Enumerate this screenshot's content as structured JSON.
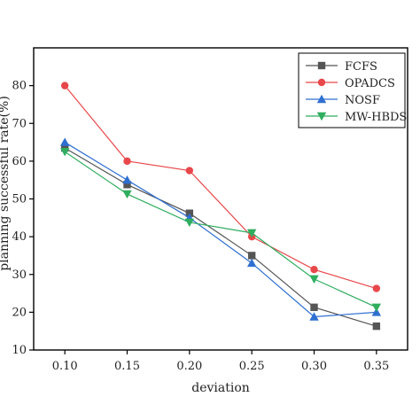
{
  "chart_data": {
    "type": "line",
    "xlabel": "deviation",
    "ylabel": "planning successful rate(%)",
    "x": [
      0.1,
      0.15,
      0.2,
      0.25,
      0.3,
      0.35
    ],
    "x_tick_labels": [
      "0.10",
      "0.15",
      "0.20",
      "0.25",
      "0.30",
      "0.35"
    ],
    "y_ticks": [
      10,
      20,
      30,
      40,
      50,
      60,
      70,
      80
    ],
    "ylim": [
      10,
      90
    ],
    "xlim": [
      0.075,
      0.375
    ],
    "grid": false,
    "legend_position": "top-right",
    "series": [
      {
        "name": "FCFS",
        "color": "#555555",
        "marker": "square",
        "values": [
          63.5,
          53.8,
          46.2,
          35.0,
          21.3,
          16.3
        ]
      },
      {
        "name": "OPADCS",
        "color": "#e8484b",
        "marker": "circle",
        "values": [
          80.0,
          60.0,
          57.5,
          40.0,
          31.3,
          26.3
        ]
      },
      {
        "name": "NOSF",
        "color": "#2f6fd1",
        "marker": "triangle-up",
        "values": [
          65.0,
          55.0,
          45.0,
          33.0,
          18.8,
          20.0
        ]
      },
      {
        "name": "MW-HBDS",
        "color": "#2fae5f",
        "marker": "triangle-down",
        "values": [
          62.5,
          51.3,
          43.8,
          41.0,
          28.8,
          21.3
        ]
      }
    ]
  }
}
